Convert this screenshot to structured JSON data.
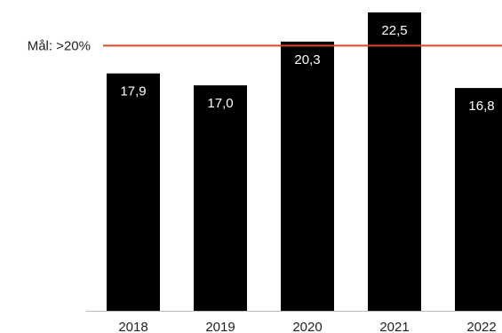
{
  "chart_data": {
    "type": "bar",
    "title": "",
    "xlabel": "",
    "ylabel": "",
    "categories": [
      "2018",
      "2019",
      "2020",
      "2021",
      "2022"
    ],
    "values": [
      17.9,
      17.0,
      20.3,
      22.5,
      16.8
    ],
    "value_labels": [
      "17,9",
      "17,0",
      "20,3",
      "22,5",
      "16,8"
    ],
    "ylim": [
      0,
      22.5
    ],
    "grid": false,
    "legend": "none",
    "target": {
      "label": "Mål: >20%",
      "value": 20
    },
    "colors": {
      "bar": "#000000",
      "target_line": "#d24a2a",
      "bar_label": "#ffffff",
      "axis": "#bdbdbd",
      "text": "#222222"
    }
  }
}
